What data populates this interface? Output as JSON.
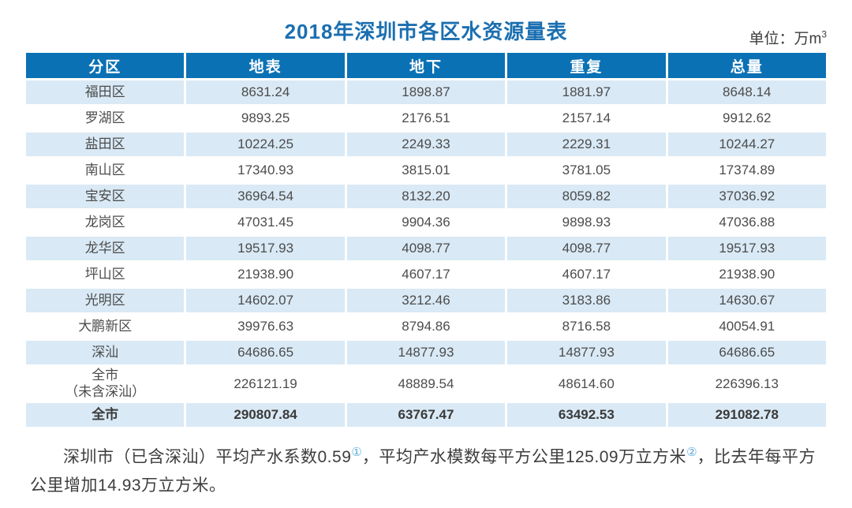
{
  "title": "2018年深圳市各区水资源量表",
  "unit_label": {
    "text": "单位：万m",
    "sup": "3"
  },
  "chart_data": {
    "type": "table",
    "title": "2018年深圳市各区水资源量表",
    "unit": "万m³",
    "columns": [
      "分区",
      "地表",
      "地下",
      "重复",
      "总量"
    ],
    "rows": [
      [
        "福田区",
        "8631.24",
        "1898.87",
        "1881.97",
        "8648.14"
      ],
      [
        "罗湖区",
        "9893.25",
        "2176.51",
        "2157.14",
        "9912.62"
      ],
      [
        "盐田区",
        "10224.25",
        "2249.33",
        "2229.31",
        "10244.27"
      ],
      [
        "南山区",
        "17340.93",
        "3815.01",
        "3781.05",
        "17374.89"
      ],
      [
        "宝安区",
        "36964.54",
        "8132.20",
        "8059.82",
        "37036.92"
      ],
      [
        "龙岗区",
        "47031.45",
        "9904.36",
        "9898.93",
        "47036.88"
      ],
      [
        "龙华区",
        "19517.93",
        "4098.77",
        "4098.77",
        "19517.93"
      ],
      [
        "坪山区",
        "21938.90",
        "4607.17",
        "4607.17",
        "21938.90"
      ],
      [
        "光明区",
        "14602.07",
        "3212.46",
        "3183.86",
        "14630.67"
      ],
      [
        "大鹏新区",
        "39976.63",
        "8794.86",
        "8716.58",
        "40054.91"
      ],
      [
        "深汕",
        "64686.65",
        "14877.93",
        "14877.93",
        "64686.65"
      ],
      [
        "全市\n（未含深汕）",
        "226121.19",
        "48889.54",
        "48614.60",
        "226396.13"
      ],
      [
        "全市",
        "290807.84",
        "63767.47",
        "63492.53",
        "291082.78"
      ]
    ]
  },
  "footnote": {
    "part1": "深圳市（已含深汕）平均产水系数0.59",
    "ref1": "①",
    "part2": "，平均产水模数每平方公里125.09万立方米",
    "ref2": "②",
    "part3": "，比去年每平方公里增加14.93万立方米。"
  },
  "colors": {
    "header_bg": "#0b71b5",
    "alt_row_bg": "#d9e9f5",
    "title_color": "#1b6fb0",
    "footnote_ref_color": "#58aed8"
  }
}
